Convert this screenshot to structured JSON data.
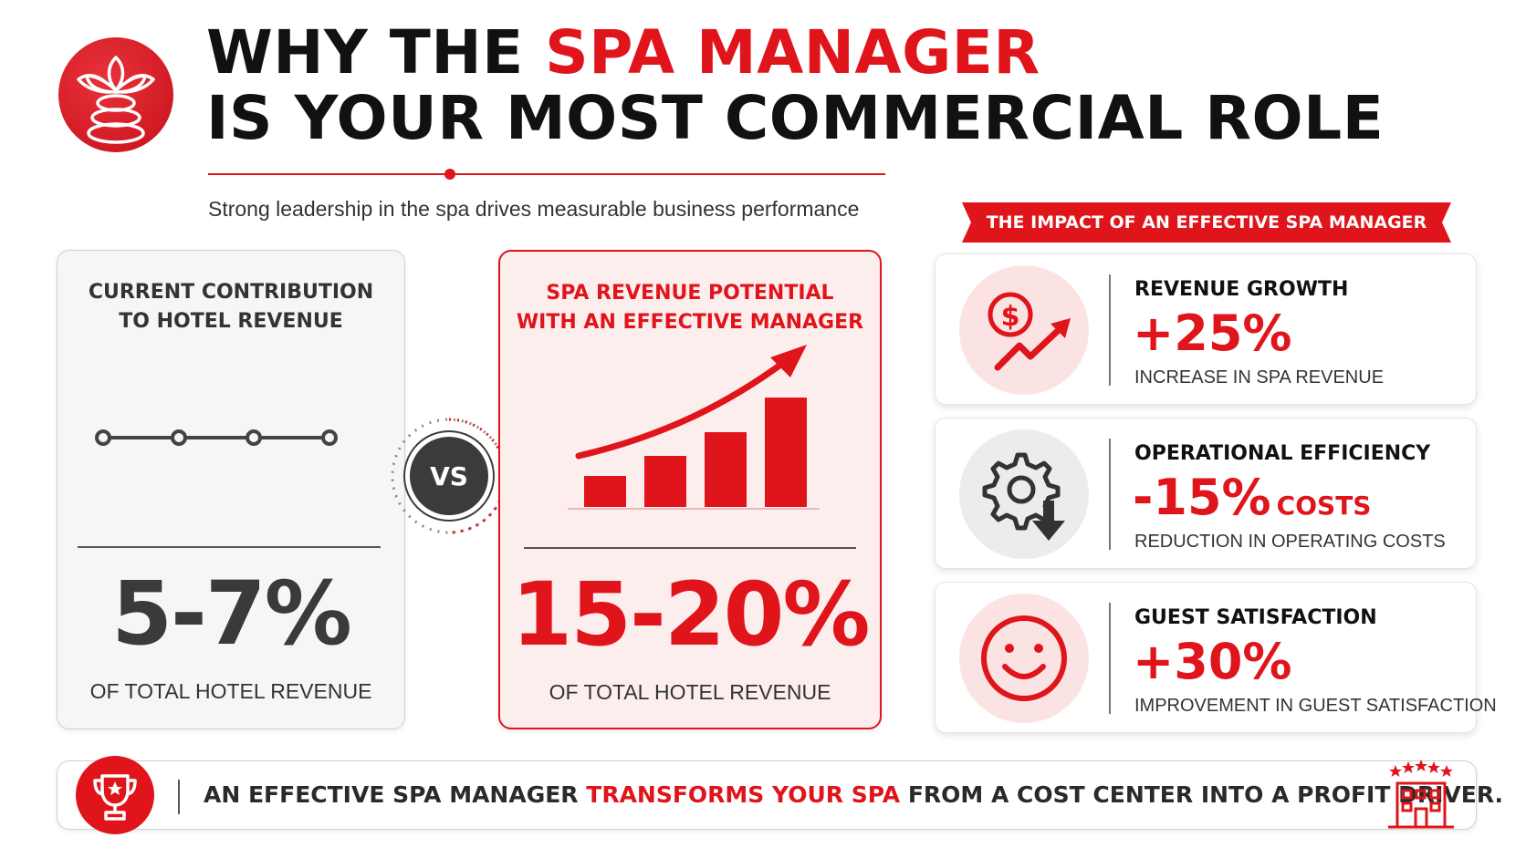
{
  "header": {
    "title_line1_prefix": "WHY THE ",
    "title_line1_highlight": "SPA MANAGER",
    "title_line2": "IS YOUR MOST COMMERCIAL ROLE",
    "subtitle": "Strong leadership in the spa drives measurable business performance",
    "logo_icon": "lotus-stones-icon"
  },
  "current": {
    "heading_line1": "CURRENT CONTRIBUTION",
    "heading_line2": "TO HOTEL REVENUE",
    "icon": "flat-line-icon",
    "value": "5-7%",
    "caption": "OF TOTAL HOTEL REVENUE"
  },
  "vs_label": "VS",
  "potential": {
    "heading_line1": "SPA REVENUE POTENTIAL",
    "heading_line2": "WITH AN EFFECTIVE MANAGER",
    "icon": "growth-bar-chart-icon",
    "value": "15-20%",
    "caption": "OF TOTAL HOTEL REVENUE"
  },
  "impact": {
    "ribbon": "THE IMPACT OF AN EFFECTIVE SPA MANAGER",
    "items": [
      {
        "label": "REVENUE GROWTH",
        "value": "+25%",
        "unit": "",
        "description": "INCREASE IN SPA REVENUE",
        "icon": "dollar-growth-icon"
      },
      {
        "label": "OPERATIONAL EFFICIENCY",
        "value": "-15%",
        "unit": "COSTS",
        "description": "REDUCTION IN OPERATING COSTS",
        "icon": "gear-down-arrow-icon"
      },
      {
        "label": "GUEST SATISFACTION",
        "value": "+30%",
        "unit": "",
        "description": "IMPROVEMENT IN GUEST SATISFACTION",
        "icon": "smiley-face-icon"
      }
    ]
  },
  "banner": {
    "text_prefix": "AN EFFECTIVE SPA MANAGER ",
    "text_highlight": "TRANSFORMS YOUR SPA",
    "text_suffix": " FROM A COST CENTER INTO A PROFIT DRIVER.",
    "left_icon": "trophy-icon",
    "right_icon": "hotel-stars-icon"
  },
  "colors": {
    "accent": "#e0141b",
    "dark": "#3b3b3b",
    "tint": "#fdeeee"
  }
}
